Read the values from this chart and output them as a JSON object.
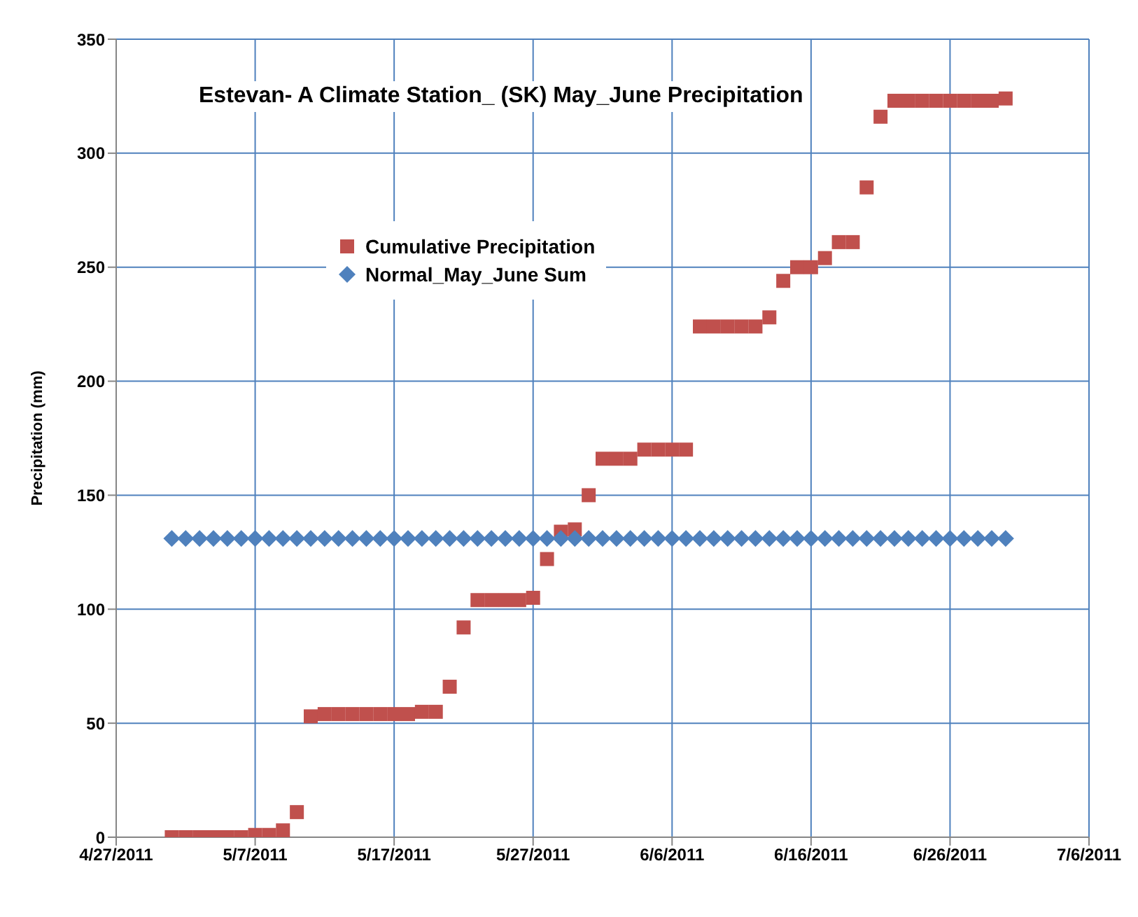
{
  "chart_data": {
    "type": "scatter",
    "title": "Estevan- A Climate Station_ (SK) May_June Precipitation",
    "ylabel": "Precipitation (mm)",
    "x": [
      "2011-05-01",
      "2011-05-02",
      "2011-05-03",
      "2011-05-04",
      "2011-05-05",
      "2011-05-06",
      "2011-05-07",
      "2011-05-08",
      "2011-05-09",
      "2011-05-10",
      "2011-05-11",
      "2011-05-12",
      "2011-05-13",
      "2011-05-14",
      "2011-05-15",
      "2011-05-16",
      "2011-05-17",
      "2011-05-18",
      "2011-05-19",
      "2011-05-20",
      "2011-05-21",
      "2011-05-22",
      "2011-05-23",
      "2011-05-24",
      "2011-05-25",
      "2011-05-26",
      "2011-05-27",
      "2011-05-28",
      "2011-05-29",
      "2011-05-30",
      "2011-05-31",
      "2011-06-01",
      "2011-06-02",
      "2011-06-03",
      "2011-06-04",
      "2011-06-05",
      "2011-06-06",
      "2011-06-07",
      "2011-06-08",
      "2011-06-09",
      "2011-06-10",
      "2011-06-11",
      "2011-06-12",
      "2011-06-13",
      "2011-06-14",
      "2011-06-15",
      "2011-06-16",
      "2011-06-17",
      "2011-06-18",
      "2011-06-19",
      "2011-06-20",
      "2011-06-21",
      "2011-06-22",
      "2011-06-23",
      "2011-06-24",
      "2011-06-25",
      "2011-06-26",
      "2011-06-27",
      "2011-06-28",
      "2011-06-29",
      "2011-06-30"
    ],
    "series": [
      {
        "name": "Cumulative Precipitation",
        "color": "#c0504d",
        "marker": "square",
        "values": [
          0,
          0,
          0,
          0,
          0,
          0,
          1,
          1,
          3,
          11,
          53,
          54,
          54,
          54,
          54,
          54,
          54,
          54,
          55,
          55,
          66,
          92,
          104,
          104,
          104,
          104,
          105,
          122,
          134,
          135,
          150,
          166,
          166,
          166,
          170,
          170,
          170,
          170,
          224,
          224,
          224,
          224,
          224,
          228,
          244,
          250,
          250,
          254,
          261,
          261,
          285,
          316,
          323,
          323,
          323,
          323,
          323,
          323,
          323,
          323,
          324
        ]
      },
      {
        "name": "Normal_May_June Sum",
        "color": "#4f81bd",
        "marker": "diamond",
        "values": [
          131,
          131,
          131,
          131,
          131,
          131,
          131,
          131,
          131,
          131,
          131,
          131,
          131,
          131,
          131,
          131,
          131,
          131,
          131,
          131,
          131,
          131,
          131,
          131,
          131,
          131,
          131,
          131,
          131,
          131,
          131,
          131,
          131,
          131,
          131,
          131,
          131,
          131,
          131,
          131,
          131,
          131,
          131,
          131,
          131,
          131,
          131,
          131,
          131,
          131,
          131,
          131,
          131,
          131,
          131,
          131,
          131,
          131,
          131,
          131,
          131
        ]
      }
    ],
    "xlim": [
      "2011-04-27",
      "2011-07-06"
    ],
    "xticks": [
      {
        "value": "2011-04-27",
        "label": "4/27/2011"
      },
      {
        "value": "2011-05-07",
        "label": "5/7/2011"
      },
      {
        "value": "2011-05-17",
        "label": "5/17/2011"
      },
      {
        "value": "2011-05-27",
        "label": "5/27/2011"
      },
      {
        "value": "2011-06-06",
        "label": "6/6/2011"
      },
      {
        "value": "2011-06-16",
        "label": "6/16/2011"
      },
      {
        "value": "2011-06-26",
        "label": "6/26/2011"
      },
      {
        "value": "2011-07-06",
        "label": "7/6/2011"
      }
    ],
    "ylim": [
      0,
      350
    ],
    "yticks": [
      0,
      50,
      100,
      150,
      200,
      250,
      300,
      350
    ],
    "grid": true,
    "legend": "top left"
  }
}
